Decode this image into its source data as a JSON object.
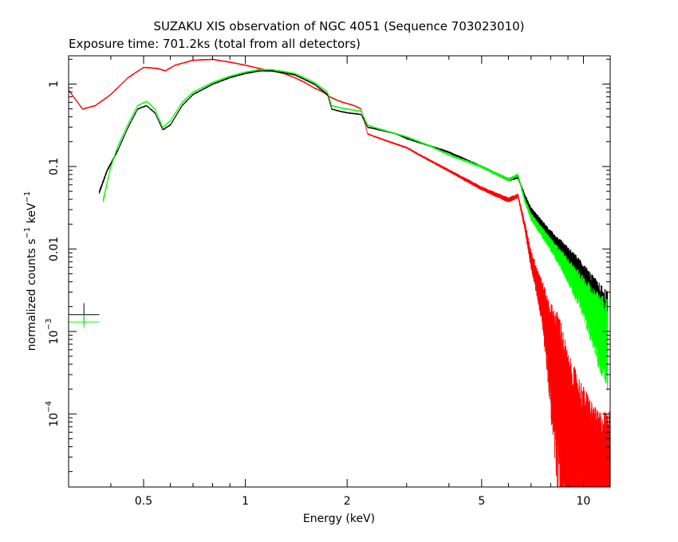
{
  "chart_data": {
    "type": "scatter",
    "title": "SUZAKU XIS observation of NGC 4051 (Sequence 703023010)",
    "subtitle": "Exposure time: 701.2ks (total from all detectors)",
    "xlabel": "Energy (keV)",
    "ylabel": {
      "prefix": "normalized counts s",
      "exp1": "−1",
      "middle": " keV",
      "exp2": "−1"
    },
    "x_scale": "log",
    "y_scale": "log",
    "xlim": [
      0.3,
      12.0
    ],
    "ylim": [
      1.3e-05,
      2.2
    ],
    "grid": false,
    "x_ticks": [
      {
        "value": 0.5,
        "label": "0.5"
      },
      {
        "value": 1,
        "label": "1"
      },
      {
        "value": 2,
        "label": "2"
      },
      {
        "value": 5,
        "label": "5"
      },
      {
        "value": 10,
        "label": "10"
      }
    ],
    "y_ticks": [
      {
        "value": 1,
        "label": "1",
        "exp": ""
      },
      {
        "value": 0.1,
        "label": "0.1",
        "exp": ""
      },
      {
        "value": 0.01,
        "label": "0.01",
        "exp": ""
      },
      {
        "value": 0.001,
        "label": "10",
        "exp": "−3"
      },
      {
        "value": 0.0001,
        "label": "10",
        "exp": "−4"
      }
    ],
    "series": [
      {
        "color": "#ff0000",
        "x": [
          0.3,
          0.33,
          0.36,
          0.4,
          0.45,
          0.5,
          0.55,
          0.58,
          0.62,
          0.7,
          0.8,
          0.9,
          1.0,
          1.1,
          1.2,
          1.3,
          1.4,
          1.5,
          1.6,
          1.7,
          1.78,
          1.85,
          1.95,
          2.1,
          2.2,
          2.3,
          2.5,
          3.0,
          3.5,
          4.0,
          5.0,
          6.0,
          6.4,
          6.7,
          7.0,
          7.5,
          8.0,
          8.5,
          9.0,
          10.0,
          11.0,
          12.0
        ],
        "y": [
          0.85,
          0.5,
          0.55,
          0.75,
          1.2,
          1.6,
          1.55,
          1.45,
          1.7,
          1.95,
          2.0,
          1.85,
          1.7,
          1.55,
          1.45,
          1.35,
          1.2,
          1.05,
          0.9,
          0.8,
          0.7,
          0.65,
          0.6,
          0.55,
          0.5,
          0.25,
          0.22,
          0.17,
          0.12,
          0.09,
          0.055,
          0.04,
          0.045,
          0.02,
          0.008,
          0.003,
          0.0008,
          0.0003,
          0.0001,
          4e-05,
          2e-05,
          2e-05
        ]
      },
      {
        "color": "#000000",
        "x": [
          0.37,
          0.39,
          0.42,
          0.45,
          0.48,
          0.51,
          0.54,
          0.57,
          0.6,
          0.65,
          0.7,
          0.8,
          0.9,
          1.0,
          1.1,
          1.2,
          1.4,
          1.6,
          1.75,
          1.8,
          1.9,
          2.0,
          2.2,
          2.3,
          2.4,
          2.8,
          3.0,
          3.5,
          4.0,
          5.0,
          6.0,
          6.4,
          6.7,
          7.0,
          8.0,
          9.0,
          10.0,
          11.0,
          11.8
        ],
        "y": [
          0.05,
          0.09,
          0.16,
          0.3,
          0.5,
          0.55,
          0.45,
          0.28,
          0.32,
          0.55,
          0.75,
          1.0,
          1.2,
          1.35,
          1.45,
          1.45,
          1.3,
          1.0,
          0.75,
          0.5,
          0.47,
          0.45,
          0.43,
          0.3,
          0.29,
          0.25,
          0.22,
          0.18,
          0.15,
          0.1,
          0.07,
          0.075,
          0.045,
          0.03,
          0.015,
          0.009,
          0.005,
          0.0025,
          0.0015
        ]
      },
      {
        "color": "#00ff00",
        "x": [
          0.38,
          0.4,
          0.42,
          0.45,
          0.48,
          0.51,
          0.54,
          0.57,
          0.6,
          0.65,
          0.7,
          0.8,
          0.9,
          1.0,
          1.1,
          1.2,
          1.4,
          1.6,
          1.75,
          1.8,
          1.9,
          2.0,
          2.2,
          2.3,
          2.4,
          2.8,
          3.0,
          3.5,
          4.0,
          5.0,
          6.0,
          6.4,
          6.7,
          7.0,
          8.0,
          9.0,
          10.0,
          11.0,
          11.8
        ],
        "y": [
          0.04,
          0.1,
          0.18,
          0.33,
          0.55,
          0.62,
          0.5,
          0.3,
          0.36,
          0.6,
          0.8,
          1.05,
          1.25,
          1.4,
          1.5,
          1.5,
          1.35,
          1.05,
          0.8,
          0.55,
          0.52,
          0.5,
          0.47,
          0.32,
          0.3,
          0.25,
          0.23,
          0.18,
          0.14,
          0.1,
          0.07,
          0.08,
          0.04,
          0.025,
          0.012,
          0.006,
          0.003,
          0.0015,
          0.001
        ]
      }
    ],
    "stray_points": [
      {
        "color": "#000000",
        "x": 0.333,
        "y": 0.0016,
        "x_err": [
          0.3,
          0.37
        ],
        "y_err": [
          0.0012,
          0.0022
        ]
      },
      {
        "color": "#00ff00",
        "x": 0.333,
        "y": 0.0013,
        "x_err": [
          0.3,
          0.37
        ],
        "y_err": [
          0.0011,
          0.0016
        ]
      }
    ]
  }
}
